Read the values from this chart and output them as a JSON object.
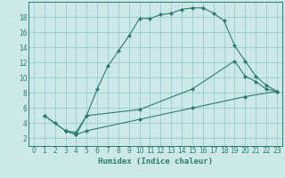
{
  "xlabel": "Humidex (Indice chaleur)",
  "bg_color": "#cce8e8",
  "grid_color": "#99cccc",
  "line_color": "#2d7d6e",
  "xlim": [
    -0.5,
    23.5
  ],
  "ylim": [
    1,
    20
  ],
  "xticks": [
    0,
    1,
    2,
    3,
    4,
    5,
    6,
    7,
    8,
    9,
    10,
    11,
    12,
    13,
    14,
    15,
    16,
    17,
    18,
    19,
    20,
    21,
    22,
    23
  ],
  "yticks": [
    2,
    4,
    6,
    8,
    10,
    12,
    14,
    16,
    18
  ],
  "curve1_x": [
    1,
    2,
    3,
    4,
    5,
    6,
    7,
    8,
    9,
    10,
    11,
    12,
    13,
    14,
    15,
    16,
    17,
    18,
    19,
    20,
    21,
    22,
    23
  ],
  "curve1_y": [
    5.0,
    4.0,
    3.0,
    2.8,
    5.0,
    8.5,
    11.5,
    13.5,
    15.5,
    17.8,
    17.8,
    18.3,
    18.5,
    19.0,
    19.2,
    19.2,
    18.5,
    17.5,
    14.2,
    12.2,
    10.2,
    9.0,
    8.2
  ],
  "curve2_x": [
    1,
    3,
    4,
    5,
    10,
    15,
    19,
    20,
    21,
    22,
    23
  ],
  "curve2_y": [
    5.0,
    3.0,
    2.5,
    5.0,
    5.8,
    8.5,
    12.2,
    10.2,
    9.5,
    8.5,
    8.2
  ],
  "curve3_x": [
    3,
    4,
    5,
    10,
    15,
    20,
    23
  ],
  "curve3_y": [
    3.0,
    2.5,
    3.0,
    4.5,
    6.0,
    7.5,
    8.2
  ]
}
